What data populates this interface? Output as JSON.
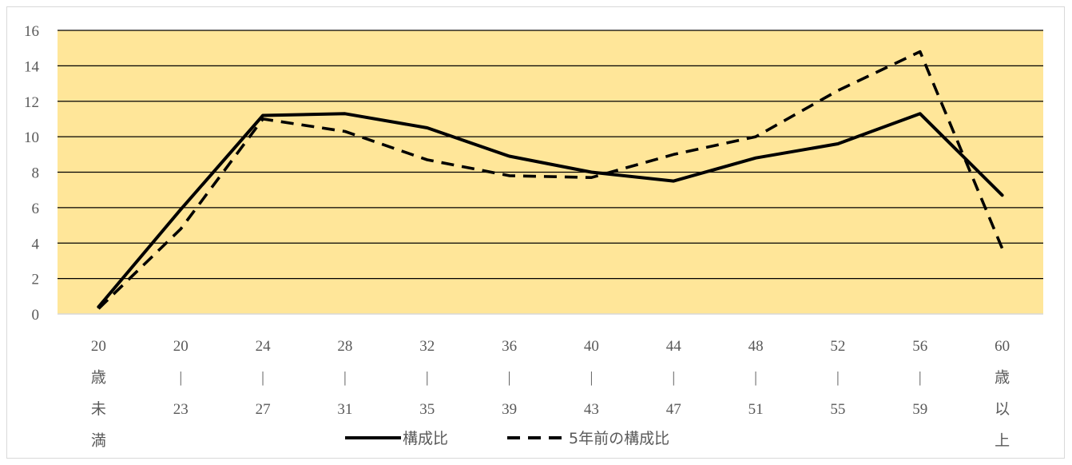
{
  "chart_data": {
    "type": "line",
    "title": "",
    "xlabel": "",
    "ylabel": "",
    "ylim": [
      0,
      16
    ],
    "yticks": [
      "0",
      "2",
      "4",
      "6",
      "8",
      "10",
      "12",
      "14",
      "16"
    ],
    "grid": true,
    "legend_position": "bottom",
    "categories": [
      [
        "20",
        "歳",
        "未",
        "満"
      ],
      [
        "20",
        "|",
        "23"
      ],
      [
        "24",
        "|",
        "27"
      ],
      [
        "28",
        "|",
        "31"
      ],
      [
        "32",
        "|",
        "35"
      ],
      [
        "36",
        "|",
        "39"
      ],
      [
        "40",
        "|",
        "43"
      ],
      [
        "44",
        "|",
        "47"
      ],
      [
        "48",
        "|",
        "51"
      ],
      [
        "52",
        "|",
        "55"
      ],
      [
        "56",
        "|",
        "59"
      ],
      [
        "60",
        "歳",
        "以",
        "上"
      ]
    ],
    "series": [
      {
        "name": "構成比",
        "style": "solid",
        "values": [
          0.4,
          5.9,
          11.2,
          11.3,
          10.5,
          8.9,
          8.0,
          7.5,
          8.8,
          9.6,
          11.3,
          6.7
        ]
      },
      {
        "name": "5年前の構成比",
        "style": "dashed",
        "values": [
          0.3,
          4.8,
          11.0,
          10.3,
          8.7,
          7.8,
          7.7,
          9.0,
          10.0,
          12.6,
          14.8,
          3.7
        ]
      }
    ],
    "colors": {
      "plot_background": "#FFE699",
      "gridline": "#000000",
      "line": "#000000",
      "tick_text": "#595959"
    }
  }
}
